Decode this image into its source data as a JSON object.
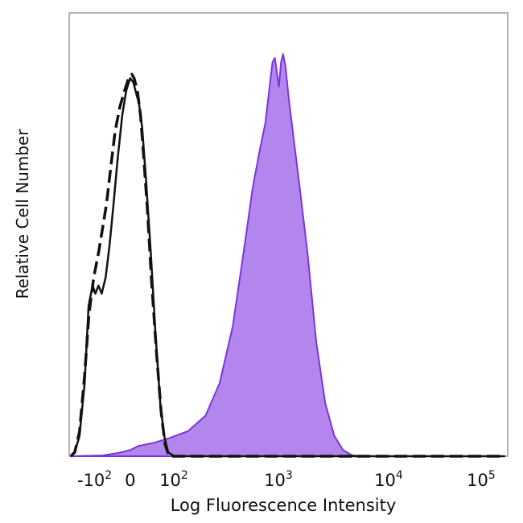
{
  "chart_data": {
    "type": "area",
    "title": "",
    "xlabel": "Log Fluorescence Intensity",
    "ylabel": "Relative Cell Number",
    "x_scale": "biexponential",
    "xlim": [
      -150,
      200000
    ],
    "ylim": [
      0,
      100
    ],
    "grid": false,
    "legend": "none",
    "x_ticks": [
      {
        "base": "-10",
        "exp": "2",
        "value": -100
      },
      {
        "base": "0",
        "exp": "",
        "value": 0
      },
      {
        "base": "10",
        "exp": "2",
        "value": 100
      },
      {
        "base": "10",
        "exp": "3",
        "value": 1000
      },
      {
        "base": "10",
        "exp": "4",
        "value": 10000
      },
      {
        "base": "10",
        "exp": "5",
        "value": 100000
      }
    ],
    "colors": {
      "stained_fill": "#b386ee",
      "stained_line": "#7b35d9",
      "control_line": "#111111",
      "frame": "#9a9a9a"
    },
    "series": [
      {
        "style": "filled",
        "points": [
          [
            -150,
            0
          ],
          [
            -70,
            0.2
          ],
          [
            -30,
            0.8
          ],
          [
            0,
            1.5
          ],
          [
            20,
            2.5
          ],
          [
            60,
            3.3
          ],
          [
            100,
            4.5
          ],
          [
            150,
            6.2
          ],
          [
            220,
            10
          ],
          [
            300,
            18
          ],
          [
            400,
            32
          ],
          [
            520,
            52
          ],
          [
            620,
            66
          ],
          [
            720,
            75
          ],
          [
            820,
            82
          ],
          [
            900,
            91
          ],
          [
            960,
            97
          ],
          [
            1010,
            98
          ],
          [
            1060,
            94
          ],
          [
            1100,
            91
          ],
          [
            1150,
            97
          ],
          [
            1200,
            99
          ],
          [
            1260,
            96
          ],
          [
            1350,
            88
          ],
          [
            1500,
            78
          ],
          [
            1700,
            66
          ],
          [
            2000,
            50
          ],
          [
            2400,
            28
          ],
          [
            2900,
            13
          ],
          [
            3500,
            5
          ],
          [
            4200,
            1.5
          ],
          [
            5000,
            0.3
          ],
          [
            6000,
            0
          ],
          [
            200000,
            0
          ]
        ]
      },
      {
        "style": "solid",
        "points": [
          [
            -150,
            0
          ],
          [
            -140,
            1
          ],
          [
            -128,
            5
          ],
          [
            -115,
            18
          ],
          [
            -105,
            37
          ],
          [
            -95,
            42
          ],
          [
            -88,
            40
          ],
          [
            -80,
            42
          ],
          [
            -72,
            40
          ],
          [
            -62,
            44
          ],
          [
            -52,
            52
          ],
          [
            -42,
            62
          ],
          [
            -32,
            73
          ],
          [
            -20,
            84
          ],
          [
            -10,
            90
          ],
          [
            0,
            93
          ],
          [
            8,
            92
          ],
          [
            16,
            89
          ],
          [
            22,
            87
          ],
          [
            30,
            81
          ],
          [
            40,
            68
          ],
          [
            52,
            50
          ],
          [
            64,
            30
          ],
          [
            76,
            13
          ],
          [
            86,
            5
          ],
          [
            96,
            1
          ],
          [
            110,
            0
          ],
          [
            200000,
            0
          ]
        ]
      },
      {
        "style": "dashed",
        "points": [
          [
            -150,
            0
          ],
          [
            -140,
            1
          ],
          [
            -128,
            6
          ],
          [
            -115,
            20
          ],
          [
            -104,
            35
          ],
          [
            -92,
            44
          ],
          [
            -80,
            50
          ],
          [
            -70,
            56
          ],
          [
            -60,
            62
          ],
          [
            -48,
            72
          ],
          [
            -38,
            80
          ],
          [
            -26,
            86
          ],
          [
            -14,
            90
          ],
          [
            -4,
            93
          ],
          [
            4,
            94
          ],
          [
            10,
            93
          ],
          [
            18,
            90
          ],
          [
            26,
            84
          ],
          [
            34,
            74
          ],
          [
            44,
            60
          ],
          [
            54,
            43
          ],
          [
            66,
            26
          ],
          [
            78,
            11
          ],
          [
            88,
            3
          ],
          [
            98,
            0
          ],
          [
            200000,
            0
          ]
        ]
      }
    ]
  }
}
